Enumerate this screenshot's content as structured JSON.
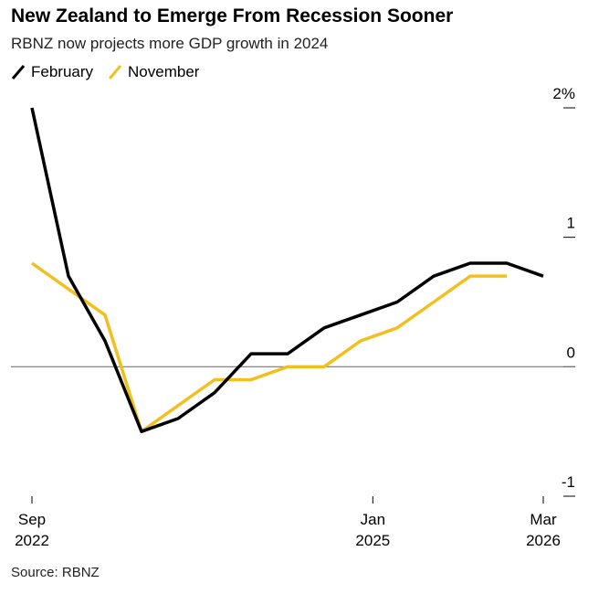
{
  "chart_data": {
    "type": "line",
    "title": "New Zealand to Emerge From Recession Sooner",
    "subtitle": "RBNZ now projects more GDP growth in 2024",
    "source": "Source: RBNZ",
    "x": [
      "2022-09",
      "2022-12",
      "2023-03",
      "2023-06",
      "2023-09",
      "2023-12",
      "2024-03",
      "2024-06",
      "2024-09",
      "2024-12",
      "2025-03",
      "2025-06",
      "2025-09",
      "2025-12",
      "2026-03"
    ],
    "series": [
      {
        "name": "February",
        "color": "#000000",
        "values": [
          2.0,
          0.7,
          0.2,
          -0.5,
          -0.4,
          -0.2,
          0.1,
          0.1,
          0.3,
          0.4,
          0.5,
          0.7,
          0.8,
          0.8,
          0.7
        ]
      },
      {
        "name": "November",
        "color": "#f2c01e",
        "values": [
          0.8,
          0.6,
          0.4,
          -0.5,
          -0.3,
          -0.1,
          -0.1,
          0.0,
          0.0,
          0.2,
          0.3,
          0.5,
          0.7,
          0.7,
          null
        ]
      }
    ],
    "xlim": [
      "2022-09",
      "2026-03"
    ],
    "xticks": [
      {
        "value": "2022-09",
        "label": "Sep 2022"
      },
      {
        "value": "2025-01",
        "label": "Jan 2025"
      },
      {
        "value": "2026-03",
        "label": "Mar 2026"
      }
    ],
    "ylim": [
      -1,
      2
    ],
    "yticks": [
      -1,
      0,
      {
        "value": 1,
        "label": "1"
      },
      {
        "value": 2,
        "label": "2%"
      }
    ],
    "zero_line": true
  }
}
